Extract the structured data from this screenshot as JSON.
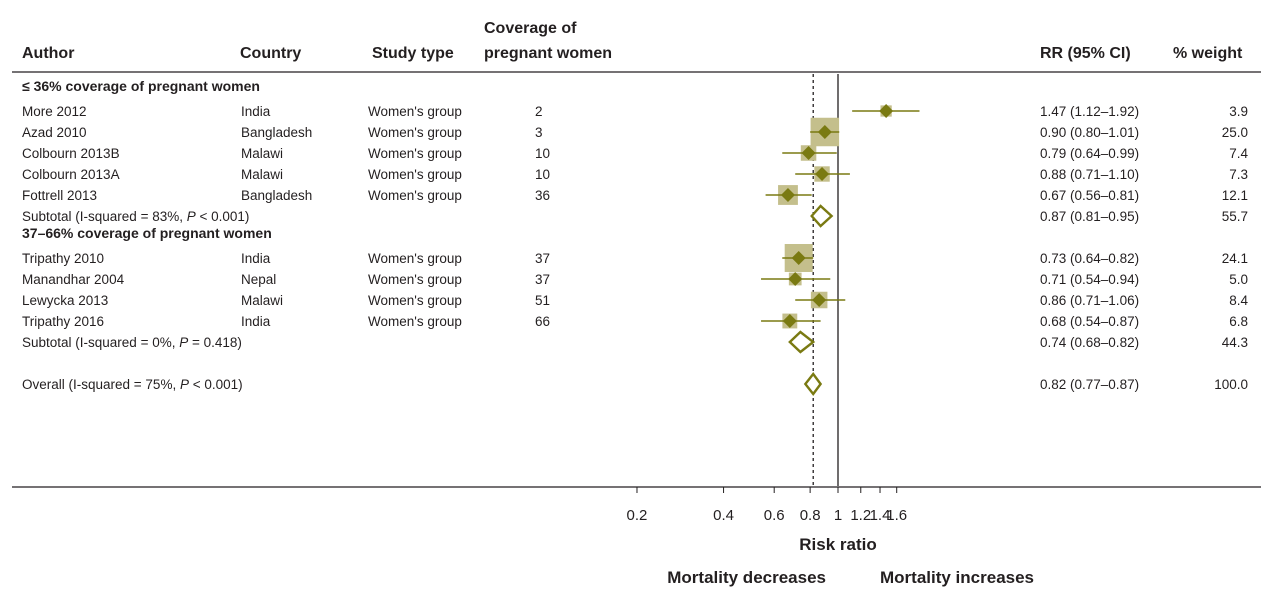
{
  "header": {
    "author": "Author",
    "country": "Country",
    "study_type": "Study type",
    "coverage_line1": "Coverage of",
    "coverage_line2": "pregnant women",
    "rr": "RR (95% CI)",
    "weight": "% weight"
  },
  "chart_data": {
    "type": "forest",
    "scale": "log",
    "xlim": [
      0.2,
      1.6
    ],
    "xlabel": "Risk ratio",
    "xticks": [
      "0.2",
      "0.4",
      "0.6",
      "0.8",
      "1",
      "1.2",
      "1.4",
      "1.6"
    ],
    "xtick_values": [
      0.2,
      0.4,
      0.6,
      0.8,
      1,
      1.2,
      1.4,
      1.6
    ],
    "null_line": 1,
    "overall_line": 0.82,
    "annot_left": "Mortality decreases",
    "annot_right": "Mortality increases",
    "marker_color": "#7a7a12",
    "box_color": "#c4bf8c",
    "groups": [
      {
        "label": "≤ 36% coverage of pregnant women",
        "studies": [
          {
            "author": "More 2012",
            "country": "India",
            "type": "Women's group",
            "coverage": "2",
            "rr": 1.47,
            "lo": 1.12,
            "hi": 1.92,
            "ci_text": "1.47 (1.12–1.92)",
            "weight": 3.9,
            "weight_text": "3.9"
          },
          {
            "author": "Azad 2010",
            "country": "Bangladesh",
            "type": "Women's group",
            "coverage": "3",
            "rr": 0.9,
            "lo": 0.8,
            "hi": 1.01,
            "ci_text": "0.90 (0.80–1.01)",
            "weight": 25.0,
            "weight_text": "25.0"
          },
          {
            "author": "Colbourn 2013B",
            "country": "Malawi",
            "type": "Women's group",
            "coverage": "10",
            "rr": 0.79,
            "lo": 0.64,
            "hi": 0.99,
            "ci_text": "0.79 (0.64–0.99)",
            "weight": 7.4,
            "weight_text": "7.4"
          },
          {
            "author": "Colbourn 2013A",
            "country": "Malawi",
            "type": "Women's group",
            "coverage": "10",
            "rr": 0.88,
            "lo": 0.71,
            "hi": 1.1,
            "ci_text": "0.88 (0.71–1.10)",
            "weight": 7.3,
            "weight_text": "7.3"
          },
          {
            "author": "Fottrell 2013",
            "country": "Bangladesh",
            "type": "Women's group",
            "coverage": "36",
            "rr": 0.67,
            "lo": 0.56,
            "hi": 0.81,
            "ci_text": "0.67 (0.56–0.81)",
            "weight": 12.1,
            "weight_text": "12.1"
          }
        ],
        "subtotal": {
          "label_prefix": "Subtotal  (I-squared = 83%, ",
          "p_letter": "P",
          "label_suffix": " < 0.001)",
          "rr": 0.87,
          "lo": 0.81,
          "hi": 0.95,
          "ci_text": "0.87 (0.81–0.95)",
          "weight_text": "55.7"
        }
      },
      {
        "label": "37–66% coverage of pregnant women",
        "studies": [
          {
            "author": "Tripathy 2010",
            "country": "India",
            "type": "Women's group",
            "coverage": "37",
            "rr": 0.73,
            "lo": 0.64,
            "hi": 0.82,
            "ci_text": "0.73 (0.64–0.82)",
            "weight": 24.1,
            "weight_text": "24.1"
          },
          {
            "author": "Manandhar 2004",
            "country": "Nepal",
            "type": "Women's group",
            "coverage": "37",
            "rr": 0.71,
            "lo": 0.54,
            "hi": 0.94,
            "ci_text": "0.71 (0.54–0.94)",
            "weight": 5.0,
            "weight_text": "5.0"
          },
          {
            "author": "Lewycka 2013",
            "country": "Malawi",
            "type": "Women's group",
            "coverage": "51",
            "rr": 0.86,
            "lo": 0.71,
            "hi": 1.06,
            "ci_text": "0.86 (0.71–1.06)",
            "weight": 8.4,
            "weight_text": "8.4"
          },
          {
            "author": "Tripathy 2016",
            "country": "India",
            "type": "Women's group",
            "coverage": "66",
            "rr": 0.68,
            "lo": 0.54,
            "hi": 0.87,
            "ci_text": "0.68 (0.54–0.87)",
            "weight": 6.8,
            "weight_text": "6.8"
          }
        ],
        "subtotal": {
          "label_prefix": "Subtotal  (I-squared = 0%, ",
          "p_letter": "P",
          "label_suffix": " = 0.418)",
          "rr": 0.74,
          "lo": 0.68,
          "hi": 0.82,
          "ci_text": "0.74 (0.68–0.82)",
          "weight_text": "44.3"
        }
      }
    ],
    "overall": {
      "label_prefix": "Overall  (I-squared = 75%, ",
      "p_letter": "P",
      "label_suffix": " < 0.001)",
      "rr": 0.82,
      "lo": 0.77,
      "hi": 0.87,
      "ci_text": "0.82 (0.77–0.87)",
      "weight_text": "100.0"
    }
  }
}
